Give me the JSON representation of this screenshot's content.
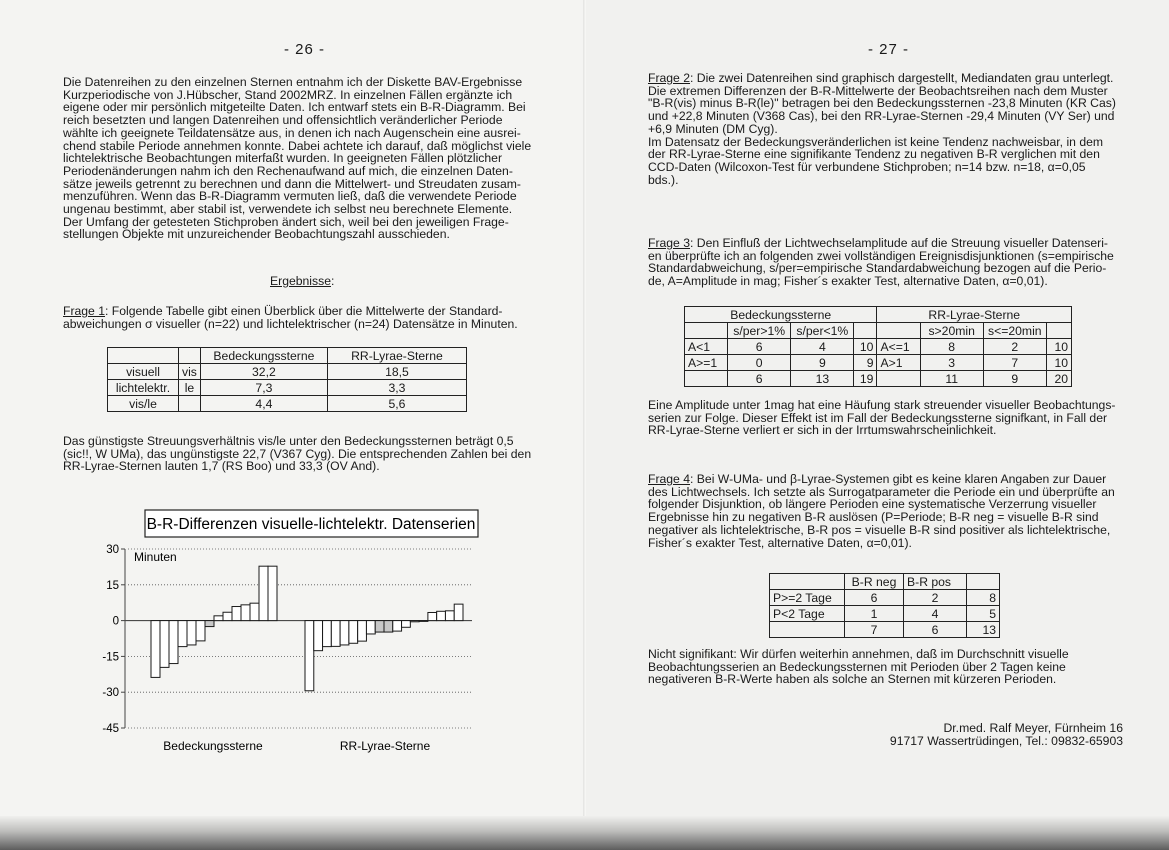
{
  "left_page": {
    "page_number": "- 26 -",
    "intro": "Die Datenreihen zu den einzelnen Sternen entnahm ich der Diskette BAV-Ergebnisse\nKurzperiodische von J.Hübscher, Stand 2002MRZ. In einzelnen Fällen ergänzte ich\neigene oder mir persönlich mitgeteilte Daten. Ich entwarf stets ein B-R-Diagramm. Bei\nreich besetzten und langen Datenreihen und offensichtlich veränderlicher Periode\nwählte ich geeignete Teildatensätze aus, in denen ich nach Augenschein eine ausrei-\nchend stabile Periode annehmen konnte. Dabei achtete ich darauf, daß möglichst viele\nlichtelektrische Beobachtungen miterfaßt wurden. In geeigneten Fällen plötzlicher\nPeriodenänderungen nahm ich den Rechenaufwand auf mich, die einzelnen Daten-\nsätze jeweils getrennt zu berechnen und dann die Mittelwert- und Streudaten zusam-\nmenzuführen. Wenn das B-R-Diagramm vermuten ließ, daß die verwendete Periode\nungenau bestimmt, aber stabil ist, verwendete ich selbst neu berechnete Elemente.\nDer Umfang der getesteten Stichproben ändert sich, weil bei den jeweiligen Frage-\nstellungen Objekte mit unzureichender Beobachtungszahl ausschieden.",
    "results_heading": "Ergebnisse",
    "results_colon": ":",
    "q1_label": "Frage 1",
    "q1_text": ": Folgende Tabelle gibt einen Überblick über die Mittelwerte der Standard-\nabweichungen σ visueller (n=22) und lichtelektrischer (n=24) Datensätze in Minuten.",
    "table1": {
      "header": [
        "",
        "",
        "Bedeckungssterne",
        "RR-Lyrae-Sterne"
      ],
      "rows": [
        [
          "visuell",
          "vis",
          "32,2",
          "18,5"
        ],
        [
          "lichtelektr.",
          "le",
          "7,3",
          "3,3"
        ],
        [
          "vis/le",
          "",
          "4,4",
          "5,6"
        ]
      ]
    },
    "after_table1": "Das günstigste Streuungsverhältnis vis/le unter den Bedeckungssternen beträgt 0,5\n(sic!!, W UMa), das ungünstigste 22,7 (V367 Cyg). Die entsprechenden Zahlen bei den\nRR-Lyrae-Sternen lauten 1,7 (RS Boo) und 33,3 (OV And)."
  },
  "chart_data": {
    "type": "bar",
    "title": "B-R-Differenzen visuelle-lichtelektr. Datenserien",
    "ylabel": "Minuten",
    "ylim": [
      -45,
      30
    ],
    "yticks": [
      "30",
      "15",
      "0",
      "-15",
      "-30",
      "-45"
    ],
    "ytick_values": [
      30,
      15,
      0,
      -15,
      -30,
      -45
    ],
    "grid": "horizontal dotted",
    "groups": [
      {
        "label": "Bedeckungssterne",
        "values": [
          -23.8,
          -19.6,
          -18.0,
          -10.9,
          -10.2,
          -8.5,
          -2.5,
          2.0,
          3.5,
          5.9,
          6.6,
          7.3,
          22.8,
          22.8
        ],
        "median_indices": [
          6
        ]
      },
      {
        "label": "RR-Lyrae-Sterne",
        "values": [
          -29.4,
          -12.6,
          -10.9,
          -10.8,
          -10.2,
          -9.5,
          -8.6,
          -5.6,
          -4.8,
          -4.8,
          -4.4,
          -2.8,
          -0.5,
          -0.3,
          3.4,
          3.9,
          4.1,
          6.9
        ],
        "median_indices": [
          8,
          9
        ]
      }
    ],
    "colors": {
      "bar": "#ffffff",
      "median_bar": "#c8c8c8",
      "outline": "#1a1a1a"
    }
  },
  "right_page": {
    "page_number": "- 27 -",
    "q2_label": "Frage 2",
    "q2_text": ": Die zwei Datenreihen sind graphisch dargestellt, Mediandaten grau unterlegt.\nDie extremen Differenzen der B-R-Mittelwerte der Beobachtsreihen nach dem Muster\n\"B-R(vis) minus B-R(le)\" betragen bei den Bedeckungssternen -23,8 Minuten (KR Cas)\nund +22,8 Minuten (V368 Cas), bei den RR-Lyrae-Sternen -29,4 Minuten (VY Ser) und\n+6,9 Minuten (DM Cyg).\nIm Datensatz  der Bedeckungsveränderlichen ist keine Tendenz nachweisbar, in dem\nder RR-Lyrae-Sterne eine signifikante Tendenz zu negativen B-R verglichen mit den\nCCD-Daten (Wilcoxon-Test für verbundene Stichproben; n=14 bzw. n=18, α=0,05\nbds.).",
    "q3_label": "Frage 3",
    "q3_text": ": Den Einfluß der Lichtwechselamplitude auf die Streuung visueller Datenseri-\nen überprüfte ich an folgenden zwei vollständigen Ereignisdisjunktionen (s=empirische\nStandardabweichung, s/per=empirische Standardabweichung bezogen auf die Perio-\nde, A=Amplitude in mag; Fisher´s exakter Test, alternative Daten, α=0,01).",
    "table2": {
      "group_headers": [
        "Bedeckungssterne",
        "RR-Lyrae-Sterne"
      ],
      "sub_headers": [
        "",
        "s/per>1%",
        "s/per<1%",
        "",
        "",
        "s>20min",
        "s<=20min",
        ""
      ],
      "rows": [
        [
          "A<1",
          "6",
          "4",
          "10",
          "A<=1",
          "8",
          "2",
          "10"
        ],
        [
          "A>=1",
          "0",
          "9",
          "9",
          "A>1",
          "3",
          "7",
          "10"
        ],
        [
          "",
          "6",
          "13",
          "19",
          "",
          "11",
          "9",
          "20"
        ]
      ]
    },
    "after_table2": "Eine Amplitude unter 1mag hat eine Häufung stark streuender visueller Beobachtungs-\nserien zur Folge. Dieser Effekt ist im Fall der Bedeckungssterne signifkant, in Fall der\nRR-Lyrae-Sterne verliert er sich in der Irrtumswahrscheinlichkeit.",
    "q4_label": "Frage 4",
    "q4_text": ": Bei W-UMa- und β-Lyrae-Systemen gibt es keine klaren Angaben zur Dauer\ndes Lichtwechsels. Ich setzte als Surrogatparameter die Periode ein und überprüfte an\nfolgender Disjunktion, ob längere Perioden eine systematische Verzerrung visueller\nErgebnisse hin zu negativen B-R auslösen (P=Periode; B-R neg = visuelle B-R sind\nnegativer als lichtelektrische, B-R pos = visuelle B-R sind positiver als lichtelektrische,\nFisher´s exakter Test, alternative Daten, α=0,01).",
    "table3": {
      "header": [
        "",
        "B-R neg",
        "B-R pos",
        ""
      ],
      "rows": [
        [
          "P>=2 Tage",
          "6",
          "2",
          "8"
        ],
        [
          "P<2 Tage",
          "1",
          "4",
          "5"
        ],
        [
          "",
          "7",
          "6",
          "13"
        ]
      ]
    },
    "after_table3": "Nicht signifikant: Wir dürfen weiterhin annehmen, daß im Durchschnitt visuelle\nBeobachtungsserien an Bedeckungssternen mit Perioden über 2 Tagen keine\nnegativeren B-R-Werte haben als solche an Sternen mit kürzeren Perioden.",
    "signature_line1": "Dr.med. Ralf Meyer, Fürnheim 16",
    "signature_line2": "91717 Wassertrüdingen, Tel.: 09832-65903"
  }
}
